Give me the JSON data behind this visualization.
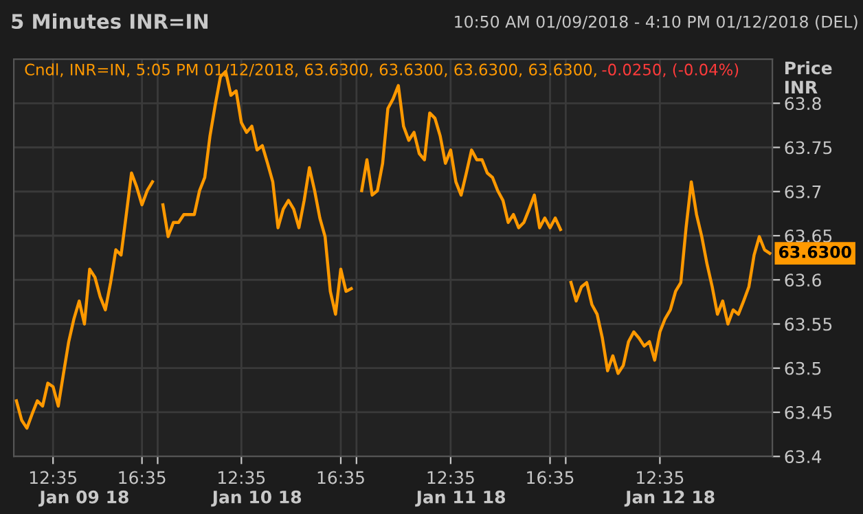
{
  "chart_data": {
    "type": "line",
    "title": "5 Minutes INR=IN",
    "subtitle": "10:50 AM 01/09/2018 - 4:10 PM 01/12/2018 (DEL)",
    "ylabel": "Price\nINR",
    "annotations": [
      "Cndl, INR=IN, 5:05 PM 01/12/2018, 63.6300, 63.6300, 63.6300, 63.6300, ",
      "-0.0250, (-0.04%)",
      "Jan 09 18",
      "Jan 10 18",
      "Jan 11 18",
      "Jan 12 18",
      "63.6300"
    ],
    "categories": [
      null,
      null,
      null,
      null,
      null,
      null,
      null,
      "12:35",
      null,
      null,
      null,
      null,
      null,
      null,
      null,
      null,
      null,
      null,
      null,
      null,
      null,
      null,
      null,
      null,
      "16:35",
      null,
      null,
      null,
      null,
      null,
      null,
      null,
      null,
      null,
      null,
      null,
      null,
      null,
      null,
      null,
      null,
      null,
      null,
      "12:35",
      null,
      null,
      null,
      null,
      null,
      null,
      null,
      null,
      null,
      null,
      null,
      null,
      null,
      null,
      null,
      null,
      null,
      null,
      "16:35",
      null,
      null,
      null,
      null,
      null,
      null,
      null,
      null,
      null,
      null,
      null,
      null,
      null,
      null,
      null,
      null,
      null,
      null,
      null,
      null,
      "12:35",
      null,
      null,
      null,
      null,
      null,
      null,
      null,
      null,
      null,
      null,
      null,
      null,
      null,
      null,
      null,
      null,
      null,
      null,
      "16:35",
      null,
      null,
      null,
      null,
      null,
      null,
      null,
      null,
      null,
      null,
      null,
      null,
      null,
      null,
      null,
      null,
      null,
      null,
      null,
      null,
      "12:35",
      null,
      null,
      null,
      null,
      null,
      null,
      null,
      null,
      null,
      null,
      null,
      null,
      null,
      null,
      null,
      null,
      null,
      null,
      null,
      null,
      null
    ],
    "series": [
      {
        "color": "#ff9900",
        "values": [
          63.463,
          63.441,
          63.432,
          63.448,
          63.463,
          63.457,
          63.483,
          63.479,
          63.457,
          63.494,
          63.53,
          63.556,
          63.576,
          63.55,
          63.612,
          63.603,
          63.581,
          63.566,
          63.597,
          63.634,
          63.628,
          63.674,
          63.721,
          63.705,
          63.685,
          63.701,
          63.711,
          null,
          63.685,
          63.649,
          63.665,
          63.665,
          63.674,
          63.674,
          63.674,
          63.701,
          63.716,
          63.763,
          63.798,
          63.83,
          63.836,
          63.809,
          63.814,
          63.778,
          63.767,
          63.774,
          63.747,
          63.752,
          63.732,
          63.711,
          63.659,
          63.68,
          63.69,
          63.68,
          63.659,
          63.69,
          63.727,
          63.701,
          63.67,
          63.649,
          63.587,
          63.561,
          63.612,
          63.587,
          63.59,
          null,
          63.701,
          63.736,
          63.696,
          63.701,
          63.732,
          63.794,
          63.805,
          63.82,
          63.774,
          63.758,
          63.767,
          63.743,
          63.736,
          63.789,
          63.783,
          63.763,
          63.732,
          63.747,
          63.711,
          63.696,
          63.721,
          63.747,
          63.736,
          63.736,
          63.721,
          63.716,
          63.701,
          63.69,
          63.665,
          63.674,
          63.659,
          63.665,
          63.68,
          63.696,
          63.659,
          63.67,
          63.659,
          63.67,
          63.657,
          null,
          63.597,
          63.576,
          63.592,
          63.597,
          63.572,
          63.561,
          63.534,
          63.497,
          63.514,
          63.494,
          63.503,
          63.53,
          63.541,
          63.534,
          63.525,
          63.53,
          63.509,
          63.541,
          63.556,
          63.566,
          63.587,
          63.597,
          63.659,
          63.711,
          63.674,
          63.649,
          63.618,
          63.592,
          63.561,
          63.576,
          63.55,
          63.566,
          63.561,
          63.576,
          63.592,
          63.628,
          63.649,
          63.634,
          63.63
        ]
      }
    ],
    "ylim": [
      63.4,
      63.85
    ],
    "yticks": [
      63.4,
      63.45,
      63.5,
      63.55,
      63.6,
      63.65,
      63.7,
      63.75,
      63.8
    ],
    "grid": true,
    "marker": "none",
    "line_style": "solid"
  }
}
